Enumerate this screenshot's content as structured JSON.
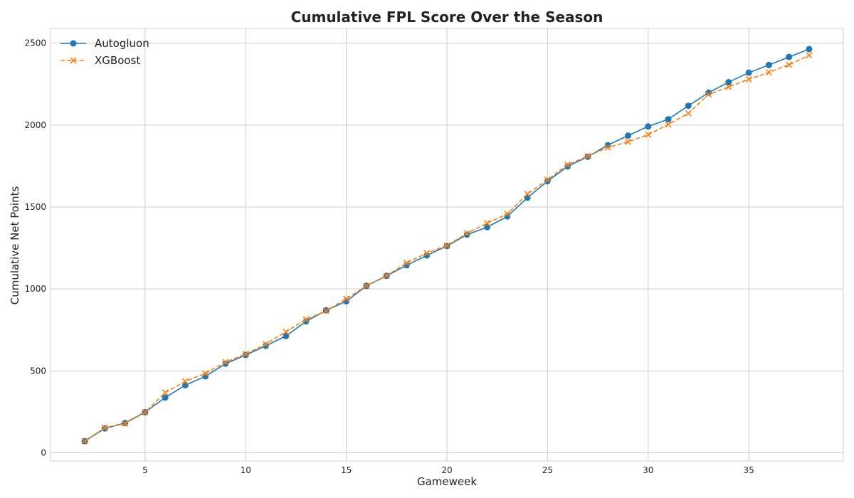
{
  "chart_data": {
    "type": "line",
    "title": "Cumulative FPL Score Over the Season",
    "xlabel": "Gameweek",
    "ylabel": "Cumulative Net Points",
    "xlim": [
      0.3,
      39.7
    ],
    "ylim": [
      -50,
      2590
    ],
    "xticks": [
      5,
      10,
      15,
      20,
      25,
      30,
      35
    ],
    "yticks": [
      0,
      500,
      1000,
      1500,
      2000,
      2500
    ],
    "grid": true,
    "legend_position": "top-left",
    "x": [
      2,
      3,
      4,
      5,
      6,
      7,
      8,
      9,
      10,
      11,
      12,
      13,
      14,
      15,
      16,
      17,
      18,
      19,
      20,
      21,
      22,
      23,
      24,
      25,
      26,
      27,
      28,
      29,
      30,
      31,
      32,
      33,
      34,
      35,
      36,
      37,
      38
    ],
    "series": [
      {
        "name": "Autogluon",
        "color": "#1f77b4",
        "marker": "circle",
        "line_style": "solid",
        "values": [
          71,
          149,
          182,
          248,
          337,
          413,
          467,
          544,
          597,
          653,
          713,
          802,
          870,
          925,
          1019,
          1080,
          1145,
          1205,
          1262,
          1332,
          1377,
          1443,
          1557,
          1658,
          1748,
          1807,
          1878,
          1936,
          1992,
          2036,
          2118,
          2198,
          2262,
          2320,
          2367,
          2416,
          2464
        ]
      },
      {
        "name": "XGBoost",
        "color": "#ff7f0e",
        "marker": "x",
        "line_style": "dashed",
        "values": [
          71,
          153,
          178,
          247,
          368,
          436,
          485,
          553,
          603,
          664,
          739,
          814,
          867,
          940,
          1019,
          1081,
          1159,
          1219,
          1265,
          1340,
          1402,
          1458,
          1580,
          1667,
          1759,
          1811,
          1864,
          1898,
          1942,
          2004,
          2072,
          2187,
          2233,
          2280,
          2322,
          2368,
          2427
        ]
      }
    ]
  }
}
